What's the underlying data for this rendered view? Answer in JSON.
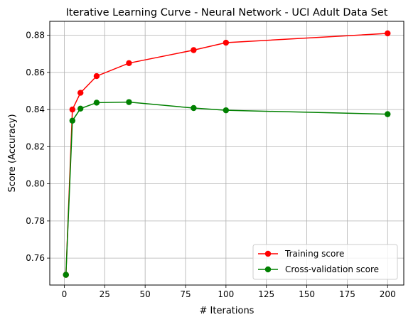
{
  "chart_data": {
    "type": "line",
    "title": "Iterative Learning Curve - Neural Network - UCI Adult Data Set",
    "xlabel": "# Iterations",
    "ylabel": "Score (Accuracy)",
    "xlim": [
      -9,
      210
    ],
    "ylim": [
      0.7455,
      0.8875
    ],
    "xticks": [
      0,
      25,
      50,
      75,
      100,
      125,
      150,
      175,
      200
    ],
    "yticks": [
      0.76,
      0.78,
      0.8,
      0.82,
      0.84,
      0.86,
      0.88
    ],
    "ytick_format": 2,
    "grid": true,
    "legend_position": "lower-right",
    "series": [
      {
        "name": "Training score",
        "color": "#ff0000",
        "marker": "circle",
        "points": [
          [
            1,
            0.751
          ],
          [
            5,
            0.84
          ],
          [
            10,
            0.849
          ],
          [
            20,
            0.858
          ],
          [
            40,
            0.865
          ],
          [
            80,
            0.872
          ],
          [
            100,
            0.876
          ],
          [
            200,
            0.881
          ]
        ]
      },
      {
        "name": "Cross-validation score",
        "color": "#008000",
        "marker": "circle",
        "points": [
          [
            1,
            0.751
          ],
          [
            5,
            0.834
          ],
          [
            10,
            0.8405
          ],
          [
            20,
            0.8437
          ],
          [
            40,
            0.844
          ],
          [
            80,
            0.8408
          ],
          [
            100,
            0.8396
          ],
          [
            200,
            0.8375
          ]
        ]
      }
    ]
  }
}
